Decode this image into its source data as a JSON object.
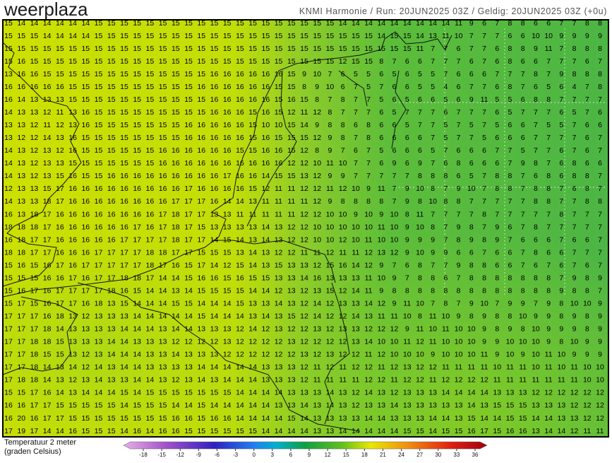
{
  "header": {
    "logo": "weerplaza",
    "info": "KNMI Harmonie / Run: 20JUN2025 03Z / Geldig: 20JUN2025 03Z (+0u)"
  },
  "legend": {
    "title": "Temperatuur 2 meter",
    "subtitle": "(graden Celsius)",
    "ticks": [
      -18,
      -15,
      -12,
      -9,
      -6,
      -3,
      0,
      3,
      6,
      9,
      12,
      15,
      18,
      21,
      24,
      27,
      30,
      33,
      36
    ]
  },
  "map": {
    "values": [
      [
        15,
        14,
        14,
        14,
        14,
        14,
        14,
        15,
        15,
        15,
        15,
        15,
        15,
        15,
        15,
        15,
        15,
        15,
        15,
        15,
        15,
        15,
        15,
        15,
        15,
        15,
        14,
        14,
        14,
        14,
        14,
        14,
        14,
        14,
        14,
        11,
        9,
        6,
        7,
        8,
        8,
        6,
        6,
        7,
        7,
        8,
        8
      ],
      [
        15,
        15,
        15,
        14,
        14,
        14,
        14,
        15,
        15,
        15,
        15,
        15,
        15,
        15,
        15,
        15,
        15,
        15,
        15,
        15,
        15,
        15,
        15,
        15,
        15,
        15,
        15,
        15,
        15,
        14,
        15,
        15,
        14,
        13,
        11,
        10,
        7,
        7,
        7,
        6,
        6,
        10,
        10,
        9,
        9,
        9,
        9
      ],
      [
        15,
        15,
        15,
        15,
        15,
        15,
        15,
        15,
        15,
        15,
        15,
        15,
        15,
        15,
        15,
        15,
        15,
        15,
        15,
        15,
        15,
        15,
        15,
        15,
        15,
        15,
        15,
        15,
        15,
        15,
        15,
        15,
        11,
        7,
        7,
        6,
        7,
        7,
        6,
        8,
        8,
        9,
        11,
        7,
        8,
        8,
        8
      ],
      [
        15,
        16,
        15,
        15,
        15,
        15,
        15,
        15,
        15,
        15,
        15,
        15,
        15,
        15,
        15,
        15,
        15,
        15,
        15,
        15,
        15,
        15,
        15,
        15,
        15,
        15,
        12,
        15,
        15,
        8,
        7,
        6,
        6,
        7,
        7,
        7,
        6,
        7,
        6,
        8,
        6,
        6,
        7,
        7,
        7,
        6,
        7
      ],
      [
        13,
        16,
        16,
        15,
        15,
        15,
        15,
        15,
        15,
        15,
        15,
        15,
        15,
        15,
        15,
        15,
        16,
        16,
        16,
        16,
        16,
        16,
        15,
        9,
        10,
        7,
        6,
        5,
        5,
        6,
        5,
        6,
        5,
        5,
        7,
        6,
        6,
        6,
        7,
        7,
        7,
        8,
        7,
        9,
        8,
        8,
        8
      ],
      [
        16,
        16,
        16,
        16,
        16,
        15,
        15,
        15,
        15,
        15,
        15,
        15,
        15,
        15,
        15,
        16,
        16,
        16,
        16,
        16,
        16,
        15,
        15,
        8,
        9,
        10,
        6,
        7,
        5,
        7,
        6,
        6,
        5,
        5,
        4,
        6,
        7,
        7,
        6,
        8,
        7,
        6,
        5,
        6,
        4,
        7,
        8
      ],
      [
        16,
        14,
        13,
        13,
        13,
        15,
        15,
        15,
        15,
        15,
        15,
        15,
        15,
        15,
        15,
        15,
        16,
        16,
        16,
        16,
        16,
        15,
        16,
        15,
        8,
        7,
        8,
        7,
        7,
        5,
        6,
        5,
        6,
        6,
        5,
        6,
        9,
        11,
        5,
        5,
        6,
        8,
        8,
        7,
        7,
        7,
        7
      ],
      [
        14,
        13,
        13,
        12,
        11,
        13,
        16,
        15,
        15,
        15,
        15,
        15,
        15,
        15,
        15,
        15,
        16,
        16,
        16,
        15,
        16,
        15,
        12,
        11,
        12,
        8,
        7,
        7,
        7,
        6,
        5,
        7,
        7,
        7,
        6,
        7,
        7,
        7,
        6,
        5,
        7,
        7,
        7,
        6,
        5,
        7,
        6
      ],
      [
        13,
        13,
        12,
        11,
        12,
        13,
        16,
        15,
        15,
        15,
        15,
        15,
        15,
        15,
        16,
        16,
        16,
        16,
        16,
        15,
        10,
        10,
        15,
        14,
        9,
        8,
        8,
        6,
        8,
        6,
        6,
        5,
        7,
        7,
        5,
        7,
        5,
        7,
        5,
        6,
        6,
        7,
        5,
        5,
        7,
        6,
        6
      ],
      [
        13,
        12,
        12,
        14,
        13,
        16,
        15,
        15,
        15,
        15,
        15,
        15,
        15,
        15,
        16,
        16,
        16,
        16,
        16,
        15,
        16,
        15,
        15,
        15,
        12,
        9,
        8,
        7,
        8,
        6,
        6,
        6,
        6,
        7,
        5,
        7,
        7,
        5,
        6,
        6,
        6,
        7,
        7,
        7,
        7,
        6,
        7
      ],
      [
        14,
        13,
        12,
        13,
        12,
        16,
        15,
        15,
        15,
        15,
        15,
        15,
        16,
        16,
        16,
        16,
        16,
        16,
        15,
        15,
        16,
        16,
        15,
        12,
        8,
        9,
        7,
        6,
        7,
        5,
        6,
        6,
        6,
        5,
        7,
        6,
        6,
        6,
        7,
        7,
        5,
        7,
        7,
        6,
        7,
        6,
        7
      ],
      [
        14,
        13,
        12,
        13,
        13,
        15,
        15,
        15,
        15,
        15,
        15,
        15,
        16,
        16,
        16,
        16,
        16,
        16,
        16,
        16,
        16,
        16,
        12,
        12,
        10,
        11,
        10,
        7,
        7,
        6,
        9,
        6,
        9,
        7,
        6,
        8,
        6,
        6,
        6,
        7,
        9,
        8,
        7,
        6,
        8,
        6,
        6
      ],
      [
        14,
        13,
        12,
        13,
        15,
        16,
        15,
        15,
        16,
        16,
        16,
        16,
        16,
        16,
        16,
        16,
        16,
        17,
        16,
        16,
        14,
        15,
        15,
        13,
        12,
        9,
        9,
        7,
        7,
        7,
        7,
        7,
        8,
        8,
        8,
        6,
        5,
        7,
        8,
        8,
        7,
        6,
        8,
        6,
        8,
        8,
        7
      ],
      [
        12,
        13,
        13,
        15,
        17,
        16,
        16,
        16,
        16,
        16,
        16,
        16,
        16,
        16,
        17,
        16,
        16,
        16,
        16,
        15,
        12,
        11,
        11,
        12,
        12,
        11,
        12,
        10,
        9,
        11,
        7,
        9,
        10,
        8,
        7,
        9,
        10,
        7,
        8,
        8,
        7,
        8,
        8,
        7,
        6,
        8,
        7
      ],
      [
        14,
        13,
        13,
        18,
        17,
        16,
        16,
        16,
        16,
        16,
        16,
        16,
        16,
        17,
        17,
        17,
        16,
        14,
        14,
        13,
        11,
        11,
        11,
        11,
        12,
        9,
        8,
        8,
        8,
        8,
        7,
        9,
        8,
        10,
        8,
        8,
        7,
        7,
        7,
        7,
        7,
        8,
        8,
        7,
        7,
        8,
        8
      ],
      [
        16,
        13,
        18,
        17,
        16,
        16,
        16,
        16,
        16,
        16,
        16,
        16,
        17,
        18,
        17,
        17,
        13,
        13,
        11,
        11,
        11,
        11,
        11,
        12,
        12,
        10,
        10,
        9,
        10,
        9,
        10,
        8,
        11,
        7,
        7,
        7,
        7,
        8,
        7,
        7,
        7,
        7,
        7,
        8,
        7,
        7,
        7
      ],
      [
        18,
        18,
        18,
        17,
        16,
        16,
        16,
        16,
        16,
        16,
        17,
        16,
        17,
        18,
        17,
        15,
        13,
        13,
        13,
        13,
        14,
        13,
        12,
        12,
        10,
        10,
        10,
        10,
        10,
        11,
        10,
        9,
        10,
        8,
        7,
        9,
        8,
        7,
        9,
        6,
        7,
        8,
        7,
        7,
        7,
        7,
        7
      ],
      [
        16,
        18,
        17,
        17,
        16,
        16,
        16,
        16,
        16,
        17,
        17,
        17,
        17,
        18,
        17,
        17,
        14,
        15,
        14,
        13,
        14,
        13,
        12,
        12,
        10,
        10,
        12,
        10,
        11,
        10,
        10,
        9,
        9,
        9,
        7,
        8,
        9,
        8,
        9,
        7,
        6,
        6,
        6,
        7,
        6,
        6,
        7
      ],
      [
        18,
        18,
        17,
        17,
        16,
        16,
        16,
        17,
        17,
        17,
        17,
        18,
        18,
        17,
        17,
        15,
        15,
        15,
        13,
        14,
        13,
        12,
        12,
        11,
        11,
        12,
        11,
        11,
        12,
        13,
        12,
        9,
        10,
        9,
        9,
        6,
        6,
        7,
        6,
        6,
        7,
        8,
        6,
        6,
        7,
        7,
        7
      ],
      [
        15,
        16,
        15,
        16,
        17,
        16,
        17,
        17,
        17,
        17,
        17,
        18,
        17,
        16,
        15,
        17,
        14,
        12,
        15,
        14,
        13,
        15,
        13,
        13,
        12,
        15,
        16,
        14,
        12,
        9,
        7,
        6,
        8,
        7,
        7,
        9,
        8,
        8,
        6,
        6,
        7,
        6,
        7,
        6,
        7,
        6,
        7
      ],
      [
        15,
        15,
        15,
        16,
        16,
        17,
        16,
        17,
        17,
        18,
        18,
        17,
        14,
        14,
        15,
        16,
        16,
        15,
        16,
        15,
        15,
        13,
        13,
        14,
        16,
        13,
        13,
        13,
        11,
        10,
        9,
        7,
        8,
        8,
        6,
        7,
        8,
        8,
        8,
        8,
        8,
        8,
        8,
        7,
        9,
        8,
        9
      ],
      [
        15,
        16,
        17,
        16,
        17,
        17,
        17,
        17,
        18,
        16,
        15,
        14,
        14,
        13,
        14,
        15,
        15,
        15,
        15,
        14,
        14,
        12,
        13,
        12,
        13,
        15,
        12,
        14,
        11,
        9,
        8,
        8,
        8,
        8,
        8,
        8,
        8,
        8,
        8,
        8,
        8,
        8,
        8,
        9,
        8,
        8,
        7
      ],
      [
        15,
        17,
        15,
        16,
        17,
        17,
        16,
        18,
        13,
        15,
        14,
        14,
        14,
        15,
        15,
        14,
        14,
        14,
        15,
        13,
        13,
        14,
        13,
        12,
        14,
        12,
        13,
        13,
        14,
        12,
        9,
        11,
        10,
        7,
        8,
        7,
        9,
        10,
        7,
        9,
        9,
        7,
        9,
        8,
        10,
        10,
        9
      ],
      [
        17,
        17,
        17,
        16,
        18,
        13,
        12,
        13,
        13,
        13,
        14,
        14,
        14,
        14,
        14,
        15,
        14,
        14,
        14,
        13,
        14,
        13,
        15,
        12,
        14,
        12,
        12,
        14,
        13,
        11,
        11,
        10,
        8,
        11,
        10,
        9,
        8,
        9,
        8,
        8,
        10,
        9,
        9,
        8,
        9,
        8,
        9
      ],
      [
        17,
        17,
        17,
        18,
        14,
        13,
        13,
        13,
        13,
        14,
        14,
        14,
        13,
        14,
        14,
        13,
        13,
        13,
        12,
        14,
        12,
        13,
        12,
        12,
        13,
        12,
        13,
        13,
        12,
        12,
        12,
        9,
        11,
        10,
        11,
        10,
        10,
        9,
        8,
        9,
        8,
        10,
        9,
        9,
        9,
        8,
        9
      ],
      [
        17,
        17,
        18,
        18,
        15,
        13,
        13,
        13,
        14,
        14,
        13,
        13,
        13,
        12,
        12,
        12,
        12,
        13,
        12,
        12,
        12,
        12,
        13,
        12,
        12,
        12,
        12,
        13,
        14,
        10,
        10,
        11,
        12,
        11,
        10,
        10,
        10,
        9,
        9,
        10,
        10,
        10,
        9,
        8,
        10,
        9,
        9
      ],
      [
        17,
        17,
        18,
        15,
        15,
        13,
        12,
        13,
        14,
        14,
        14,
        13,
        13,
        14,
        13,
        13,
        13,
        12,
        12,
        12,
        12,
        12,
        12,
        13,
        12,
        13,
        12,
        12,
        11,
        12,
        10,
        10,
        10,
        9,
        10,
        10,
        10,
        11,
        9,
        10,
        9,
        10,
        11,
        10,
        9,
        9,
        9
      ],
      [
        17,
        17,
        18,
        14,
        13,
        14,
        12,
        14,
        13,
        14,
        14,
        13,
        13,
        13,
        13,
        14,
        14,
        14,
        14,
        14,
        13,
        13,
        13,
        12,
        11,
        12,
        11,
        12,
        12,
        11,
        12,
        13,
        12,
        12,
        11,
        11,
        11,
        11,
        10,
        11,
        11,
        10,
        11,
        10,
        11,
        10,
        10
      ],
      [
        17,
        18,
        18,
        14,
        13,
        12,
        13,
        14,
        13,
        13,
        14,
        14,
        13,
        12,
        13,
        14,
        13,
        14,
        14,
        14,
        13,
        13,
        13,
        12,
        11,
        11,
        11,
        11,
        12,
        12,
        11,
        12,
        12,
        11,
        12,
        12,
        12,
        12,
        11,
        11,
        11,
        11,
        11,
        11,
        11,
        10,
        10
      ],
      [
        15,
        15,
        17,
        16,
        14,
        13,
        14,
        14,
        14,
        15,
        14,
        15,
        15,
        15,
        15,
        15,
        15,
        15,
        14,
        14,
        14,
        14,
        13,
        13,
        13,
        14,
        13,
        12,
        14,
        13,
        12,
        13,
        13,
        13,
        14,
        14,
        14,
        14,
        13,
        13,
        13,
        12,
        12,
        12,
        12,
        12,
        12
      ],
      [
        16,
        16,
        17,
        17,
        15,
        15,
        15,
        15,
        15,
        14,
        15,
        15,
        15,
        14,
        14,
        15,
        14,
        14,
        14,
        14,
        14,
        13,
        13,
        14,
        13,
        14,
        13,
        12,
        13,
        13,
        14,
        13,
        13,
        13,
        13,
        13,
        14,
        13,
        15,
        15,
        15,
        13,
        13,
        13,
        12,
        12,
        12
      ],
      [
        16,
        20,
        16,
        17,
        17,
        15,
        15,
        15,
        15,
        15,
        15,
        15,
        15,
        16,
        16,
        15,
        16,
        16,
        14,
        14,
        14,
        14,
        15,
        14,
        13,
        13,
        13,
        13,
        14,
        14,
        13,
        13,
        13,
        14,
        14,
        13,
        15,
        14,
        14,
        15,
        15,
        14,
        14,
        13,
        13,
        12,
        12
      ],
      [
        17,
        19,
        17,
        14,
        14,
        16,
        15,
        15,
        15,
        14,
        16,
        14,
        16,
        16,
        15,
        15,
        15,
        15,
        15,
        15,
        14,
        14,
        14,
        14,
        13,
        13,
        14,
        14,
        14,
        14,
        14,
        15,
        15,
        14,
        15,
        15,
        16,
        17,
        15,
        16,
        16,
        13,
        14,
        14,
        12,
        11,
        11
      ]
    ]
  }
}
